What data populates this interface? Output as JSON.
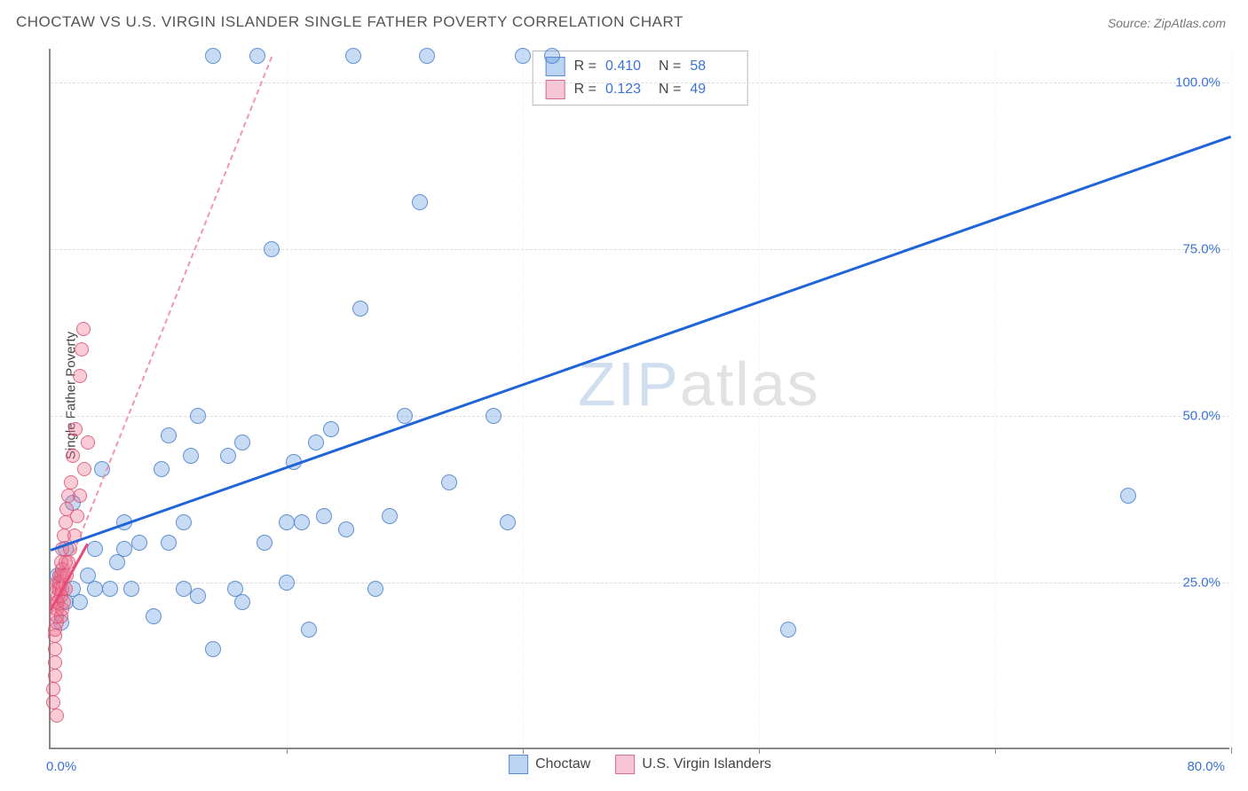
{
  "title": "CHOCTAW VS U.S. VIRGIN ISLANDER SINGLE FATHER POVERTY CORRELATION CHART",
  "source": "Source: ZipAtlas.com",
  "ylabel": "Single Father Poverty",
  "watermark": {
    "z": "ZIP",
    "rest": "atlas"
  },
  "chart": {
    "type": "scatter",
    "background_color": "#ffffff",
    "grid_color": "#dddddd",
    "axis_color": "#888888",
    "xlim": [
      0,
      80
    ],
    "ylim": [
      0,
      105
    ],
    "x_ticks": [
      0,
      16,
      32,
      48,
      64,
      80
    ],
    "x_tick_labels": {
      "0": "0.0%",
      "80": "80.0%"
    },
    "y_ticks": [
      25,
      50,
      75,
      100
    ],
    "y_tick_labels": {
      "25": "25.0%",
      "50": "50.0%",
      "75": "75.0%",
      "100": "100.0%"
    },
    "series": [
      {
        "name": "Choctaw",
        "color_fill": "rgba(96,153,224,0.35)",
        "color_stroke": "#4a80c8",
        "marker_size": 18,
        "R": "0.410",
        "N": "58",
        "trend": {
          "x1": 0,
          "y1": 30,
          "x2": 80,
          "y2": 92,
          "color": "#1f64d8",
          "width": 3,
          "dash": false
        },
        "points": [
          [
            0.5,
            26
          ],
          [
            0.7,
            19
          ],
          [
            1,
            22
          ],
          [
            1,
            30
          ],
          [
            1.5,
            24
          ],
          [
            1.5,
            37
          ],
          [
            2,
            22
          ],
          [
            2.5,
            26
          ],
          [
            3,
            30
          ],
          [
            3,
            24
          ],
          [
            3.5,
            42
          ],
          [
            4,
            24
          ],
          [
            4.5,
            28
          ],
          [
            5,
            30
          ],
          [
            5,
            34
          ],
          [
            5.5,
            24
          ],
          [
            6,
            31
          ],
          [
            7,
            20
          ],
          [
            7.5,
            42
          ],
          [
            8,
            31
          ],
          [
            8,
            47
          ],
          [
            9,
            24
          ],
          [
            9,
            34
          ],
          [
            9.5,
            44
          ],
          [
            10,
            23
          ],
          [
            10,
            50
          ],
          [
            11,
            15
          ],
          [
            11,
            104
          ],
          [
            12,
            44
          ],
          [
            12.5,
            24
          ],
          [
            13,
            22
          ],
          [
            13,
            46
          ],
          [
            14,
            104
          ],
          [
            14.5,
            31
          ],
          [
            15,
            75
          ],
          [
            16,
            25
          ],
          [
            16,
            34
          ],
          [
            16.5,
            43
          ],
          [
            17,
            34
          ],
          [
            17.5,
            18
          ],
          [
            18,
            46
          ],
          [
            18.5,
            35
          ],
          [
            19,
            48
          ],
          [
            20,
            33
          ],
          [
            20.5,
            104
          ],
          [
            21,
            66
          ],
          [
            22,
            24
          ],
          [
            23,
            35
          ],
          [
            24,
            50
          ],
          [
            25,
            82
          ],
          [
            25.5,
            104
          ],
          [
            27,
            40
          ],
          [
            30,
            50
          ],
          [
            31,
            34
          ],
          [
            32,
            104
          ],
          [
            34,
            104
          ],
          [
            50,
            18
          ],
          [
            73,
            38
          ]
        ]
      },
      {
        "name": "U.S. Virgin Islanders",
        "color_fill": "rgba(238,110,140,0.35)",
        "color_stroke": "#dc5073",
        "marker_size": 16,
        "R": "0.123",
        "N": "49",
        "trend_solid": {
          "x1": 0,
          "y1": 21,
          "x2": 2.5,
          "y2": 31,
          "color": "#e84a7a",
          "width": 3
        },
        "trend_dash": {
          "x1": 0,
          "y1": 21,
          "x2": 15,
          "y2": 104,
          "color": "rgba(240,140,160,0.9)",
          "width": 2
        },
        "points": [
          [
            0.2,
            7
          ],
          [
            0.2,
            9
          ],
          [
            0.3,
            11
          ],
          [
            0.3,
            13
          ],
          [
            0.3,
            15
          ],
          [
            0.3,
            17
          ],
          [
            0.3,
            18
          ],
          [
            0.4,
            19
          ],
          [
            0.4,
            20
          ],
          [
            0.4,
            21
          ],
          [
            0.4,
            22
          ],
          [
            0.5,
            22
          ],
          [
            0.5,
            23
          ],
          [
            0.5,
            24
          ],
          [
            0.5,
            25
          ],
          [
            0.6,
            24
          ],
          [
            0.6,
            25
          ],
          [
            0.6,
            26
          ],
          [
            0.7,
            20
          ],
          [
            0.7,
            23
          ],
          [
            0.7,
            26
          ],
          [
            0.7,
            28
          ],
          [
            0.8,
            21
          ],
          [
            0.8,
            24
          ],
          [
            0.8,
            27
          ],
          [
            0.8,
            30
          ],
          [
            0.9,
            22
          ],
          [
            0.9,
            26
          ],
          [
            0.9,
            32
          ],
          [
            1.0,
            24
          ],
          [
            1.0,
            28
          ],
          [
            1.0,
            34
          ],
          [
            1.1,
            26
          ],
          [
            1.1,
            36
          ],
          [
            1.2,
            28
          ],
          [
            1.2,
            38
          ],
          [
            1.3,
            30
          ],
          [
            1.4,
            40
          ],
          [
            1.5,
            44
          ],
          [
            1.6,
            32
          ],
          [
            1.7,
            48
          ],
          [
            1.8,
            35
          ],
          [
            2.0,
            56
          ],
          [
            2.0,
            38
          ],
          [
            2.1,
            60
          ],
          [
            2.2,
            63
          ],
          [
            2.3,
            42
          ],
          [
            2.5,
            46
          ],
          [
            0.4,
            5
          ]
        ]
      }
    ],
    "stats_box": {
      "rows": [
        {
          "swatch": "blue",
          "r_label": "R =",
          "r_value": "0.410",
          "n_label": "N =",
          "n_value": "58"
        },
        {
          "swatch": "pink",
          "r_label": "R =",
          "r_value": "0.123",
          "n_label": "N =",
          "n_value": "49"
        }
      ]
    },
    "bottom_legend": [
      {
        "swatch": "blue",
        "label": "Choctaw"
      },
      {
        "swatch": "pink",
        "label": "U.S. Virgin Islanders"
      }
    ]
  }
}
